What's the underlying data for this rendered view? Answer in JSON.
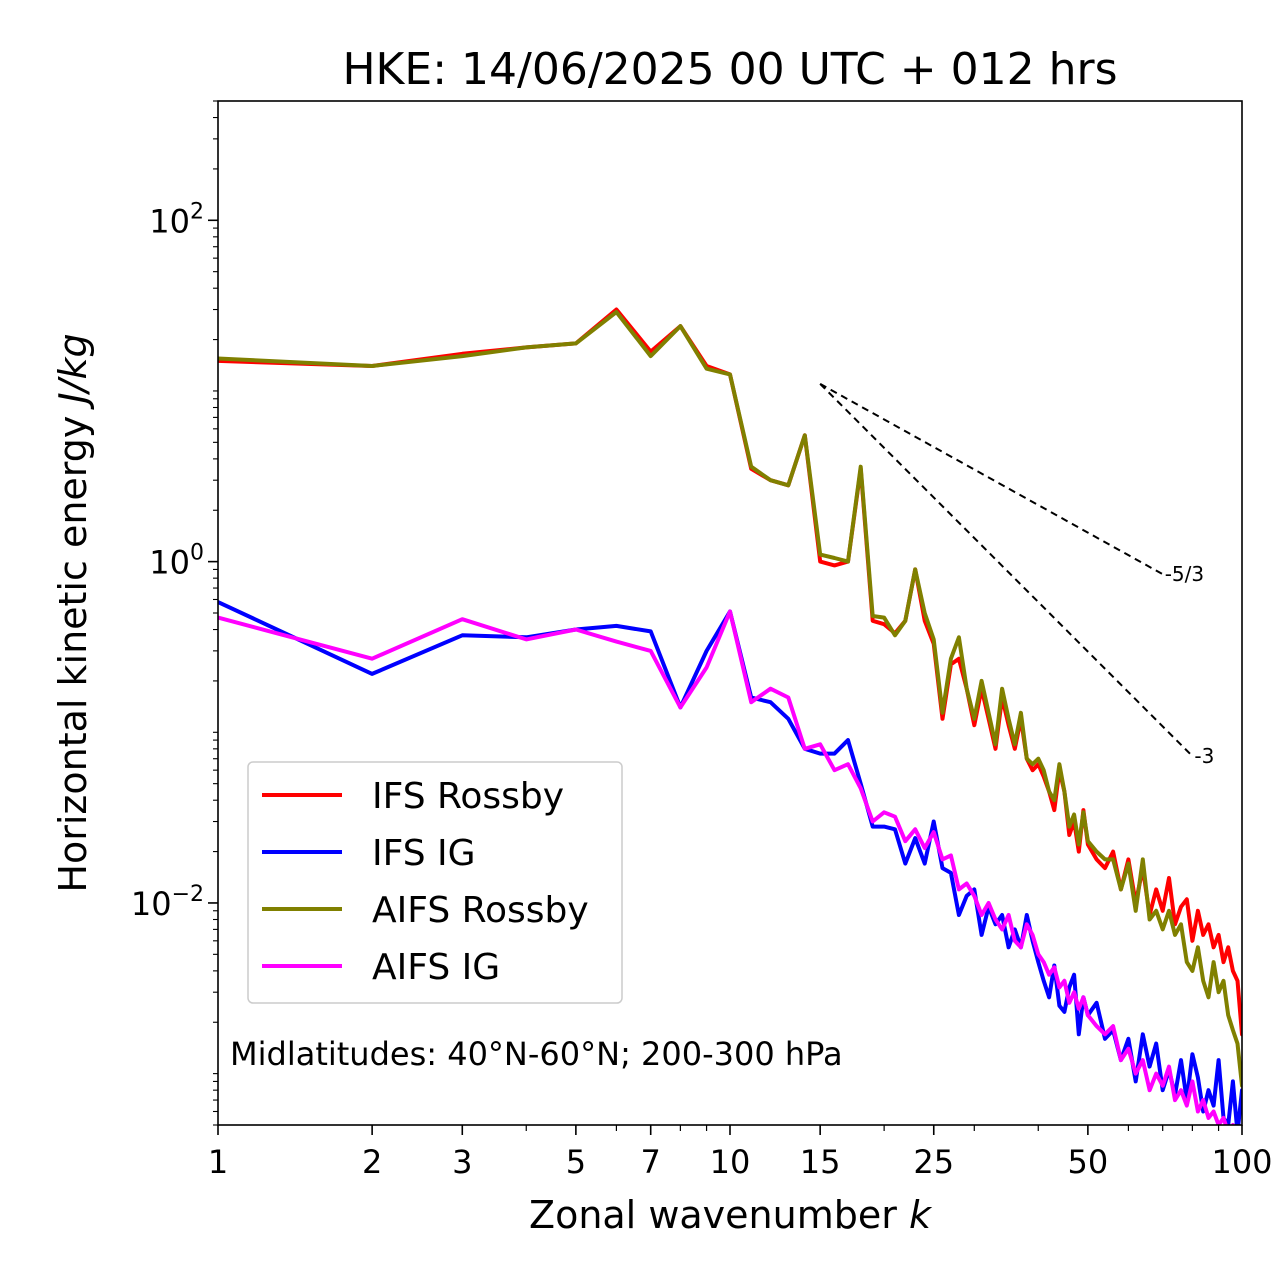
{
  "chart_data": {
    "type": "line",
    "title": "HKE: 14/06/2025 00 UTC + 012 hrs",
    "xlabel": "Zonal wavenumber",
    "xlabel_var": "k",
    "ylabel": "Horizontal kinetic energy",
    "ylabel_unit": "J/kg",
    "xscale": "log",
    "yscale": "log",
    "xlim": [
      1,
      100
    ],
    "ylim": [
      0.0005,
      500
    ],
    "x_ticks": [
      {
        "value": 1,
        "label": "1"
      },
      {
        "value": 2,
        "label": "2"
      },
      {
        "value": 3,
        "label": "3"
      },
      {
        "value": 5,
        "label": "5"
      },
      {
        "value": 7,
        "label": "7"
      },
      {
        "value": 10,
        "label": "10"
      },
      {
        "value": 15,
        "label": "15"
      },
      {
        "value": 25,
        "label": "25"
      },
      {
        "value": 50,
        "label": "50"
      },
      {
        "value": 100,
        "label": "100"
      }
    ],
    "y_ticks": [
      {
        "value": 100,
        "mantissa": "10",
        "exponent": "2"
      },
      {
        "value": 1,
        "mantissa": "10",
        "exponent": "0"
      },
      {
        "value": 0.01,
        "mantissa": "10",
        "exponent": "−2"
      }
    ],
    "grid": false,
    "legend_position": "lower-left",
    "annotation": "Midlatitudes: 40°N-60°N; 200-300 hPa",
    "reference_slopes": [
      {
        "label": "-5/3",
        "slope": -1.6667,
        "x": [
          15,
          70
        ],
        "y0": 11
      },
      {
        "label": "-3",
        "slope": -3,
        "x": [
          15,
          80
        ],
        "y0": 11
      }
    ],
    "series": [
      {
        "name": "IFS Rossby",
        "color": "#ff0000",
        "x": [
          1,
          2,
          3,
          4,
          5,
          6,
          7,
          8,
          9,
          10,
          11,
          12,
          13,
          14,
          15,
          16,
          17,
          18,
          19,
          20,
          21,
          22,
          23,
          24,
          25,
          26,
          27,
          28,
          29,
          30,
          31,
          32,
          33,
          34,
          35,
          36,
          37,
          38,
          39,
          40,
          41,
          42,
          43,
          44,
          45,
          46,
          47,
          48,
          49,
          50,
          52,
          54,
          56,
          58,
          60,
          62,
          64,
          66,
          68,
          70,
          72,
          74,
          76,
          78,
          80,
          82,
          84,
          86,
          88,
          90,
          92,
          94,
          96,
          98,
          100
        ],
        "y": [
          15,
          14,
          16.5,
          18,
          19,
          30,
          17,
          24,
          14,
          12.5,
          3.5,
          3,
          2.8,
          5.5,
          1.0,
          0.95,
          1.0,
          3.5,
          0.45,
          0.43,
          0.38,
          0.45,
          0.9,
          0.45,
          0.33,
          0.12,
          0.25,
          0.27,
          0.18,
          0.11,
          0.18,
          0.12,
          0.08,
          0.16,
          0.11,
          0.08,
          0.12,
          0.07,
          0.06,
          0.065,
          0.055,
          0.045,
          0.035,
          0.06,
          0.045,
          0.025,
          0.03,
          0.02,
          0.035,
          0.022,
          0.018,
          0.016,
          0.02,
          0.012,
          0.018,
          0.01,
          0.016,
          0.0085,
          0.012,
          0.009,
          0.014,
          0.0075,
          0.0095,
          0.0105,
          0.006,
          0.009,
          0.0065,
          0.0075,
          0.0055,
          0.0065,
          0.0045,
          0.0055,
          0.004,
          0.0035,
          0.0017
        ]
      },
      {
        "name": "IFS IG",
        "color": "#0000ff",
        "x": [
          1,
          2,
          3,
          4,
          5,
          6,
          7,
          8,
          9,
          10,
          11,
          12,
          13,
          14,
          15,
          16,
          17,
          18,
          19,
          20,
          21,
          22,
          23,
          24,
          25,
          26,
          27,
          28,
          29,
          30,
          31,
          32,
          33,
          34,
          35,
          36,
          37,
          38,
          39,
          40,
          41,
          42,
          43,
          44,
          45,
          46,
          47,
          48,
          49,
          50,
          52,
          54,
          56,
          58,
          60,
          62,
          64,
          66,
          68,
          70,
          72,
          74,
          76,
          78,
          80,
          82,
          84,
          86,
          88,
          90,
          92,
          94,
          96,
          98,
          100
        ],
        "y": [
          0.58,
          0.22,
          0.37,
          0.36,
          0.4,
          0.42,
          0.39,
          0.14,
          0.3,
          0.51,
          0.16,
          0.15,
          0.12,
          0.08,
          0.075,
          0.075,
          0.09,
          0.05,
          0.028,
          0.028,
          0.027,
          0.017,
          0.024,
          0.017,
          0.03,
          0.016,
          0.015,
          0.0085,
          0.011,
          0.012,
          0.0065,
          0.0095,
          0.0075,
          0.0085,
          0.0055,
          0.007,
          0.0055,
          0.0085,
          0.006,
          0.0045,
          0.0035,
          0.0028,
          0.0043,
          0.0025,
          0.0023,
          0.0032,
          0.0038,
          0.0017,
          0.0028,
          0.0022,
          0.0026,
          0.0016,
          0.0018,
          0.0012,
          0.0016,
          0.0009,
          0.0017,
          0.0011,
          0.0015,
          0.0008,
          0.00105,
          0.00075,
          0.0012,
          0.0007,
          0.0013,
          0.00095,
          0.0006,
          0.0008,
          0.00065,
          0.0012,
          0.00055,
          0.0005,
          0.0009,
          0.00045,
          0.0008
        ]
      },
      {
        "name": "AIFS Rossby",
        "color": "#808000",
        "x": [
          1,
          2,
          3,
          4,
          5,
          6,
          7,
          8,
          9,
          10,
          11,
          12,
          13,
          14,
          15,
          16,
          17,
          18,
          19,
          20,
          21,
          22,
          23,
          24,
          25,
          26,
          27,
          28,
          29,
          30,
          31,
          32,
          33,
          34,
          35,
          36,
          37,
          38,
          39,
          40,
          41,
          42,
          43,
          44,
          45,
          46,
          47,
          48,
          49,
          50,
          52,
          54,
          56,
          58,
          60,
          62,
          64,
          66,
          68,
          70,
          72,
          74,
          76,
          78,
          80,
          82,
          84,
          86,
          88,
          90,
          92,
          94,
          96,
          98,
          100
        ],
        "y": [
          15.5,
          14,
          16,
          18,
          19,
          29,
          16,
          24,
          13.5,
          12.5,
          3.6,
          3.0,
          2.8,
          5.5,
          1.1,
          1.05,
          1.0,
          3.6,
          0.48,
          0.47,
          0.37,
          0.45,
          0.9,
          0.5,
          0.35,
          0.13,
          0.27,
          0.36,
          0.18,
          0.12,
          0.2,
          0.13,
          0.085,
          0.18,
          0.12,
          0.085,
          0.13,
          0.07,
          0.065,
          0.07,
          0.06,
          0.045,
          0.04,
          0.065,
          0.045,
          0.028,
          0.033,
          0.022,
          0.034,
          0.023,
          0.02,
          0.018,
          0.018,
          0.012,
          0.017,
          0.009,
          0.018,
          0.008,
          0.009,
          0.007,
          0.009,
          0.0065,
          0.0075,
          0.0045,
          0.004,
          0.0055,
          0.0035,
          0.0028,
          0.0045,
          0.003,
          0.0035,
          0.0022,
          0.0018,
          0.0015,
          0.00085
        ]
      },
      {
        "name": "AIFS IG",
        "color": "#ff00ff",
        "x": [
          1,
          2,
          3,
          4,
          5,
          6,
          7,
          8,
          9,
          10,
          11,
          12,
          13,
          14,
          15,
          16,
          17,
          18,
          19,
          20,
          21,
          22,
          23,
          24,
          25,
          26,
          27,
          28,
          29,
          30,
          31,
          32,
          33,
          34,
          35,
          36,
          37,
          38,
          39,
          40,
          41,
          42,
          43,
          44,
          45,
          46,
          47,
          48,
          49,
          50,
          52,
          54,
          56,
          58,
          60,
          62,
          64,
          66,
          68,
          70,
          72,
          74,
          76,
          78,
          80,
          82,
          84,
          86,
          88,
          90,
          92,
          94,
          96,
          98,
          100
        ],
        "y": [
          0.47,
          0.27,
          0.46,
          0.35,
          0.4,
          0.34,
          0.3,
          0.14,
          0.24,
          0.51,
          0.15,
          0.18,
          0.16,
          0.08,
          0.085,
          0.06,
          0.065,
          0.047,
          0.03,
          0.034,
          0.032,
          0.023,
          0.027,
          0.021,
          0.026,
          0.018,
          0.019,
          0.012,
          0.013,
          0.011,
          0.0085,
          0.01,
          0.008,
          0.007,
          0.0085,
          0.006,
          0.0055,
          0.0075,
          0.0065,
          0.005,
          0.0045,
          0.0038,
          0.0042,
          0.0032,
          0.0035,
          0.0026,
          0.003,
          0.0024,
          0.0028,
          0.0022,
          0.0019,
          0.0017,
          0.0019,
          0.0012,
          0.0014,
          0.001,
          0.0012,
          0.0008,
          0.001,
          0.00085,
          0.0011,
          0.0007,
          0.0008,
          0.00065,
          0.0009,
          0.0006,
          0.0007,
          0.00055,
          0.0006,
          0.0005,
          0.00055,
          0.00045,
          0.0005,
          0.0004,
          0.00035
        ]
      }
    ]
  }
}
